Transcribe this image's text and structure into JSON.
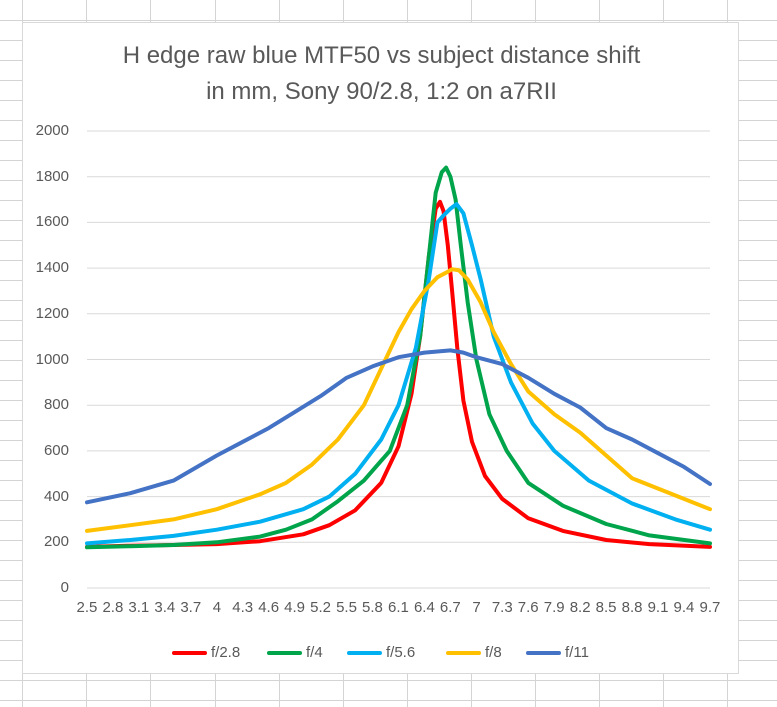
{
  "chart_data": {
    "type": "line",
    "title_line_1": "H edge raw blue MTF50 vs subject distance shift",
    "title_line_2": "in mm, Sony 90/2.8, 1:2 on a7RII",
    "x_range": [
      2.5,
      9.7
    ],
    "x_tick_labels": [
      "2.5",
      "2.8",
      "3.1",
      "3.4",
      "3.7",
      "4",
      "4.3",
      "4.6",
      "4.9",
      "5.2",
      "5.5",
      "5.8",
      "6.1",
      "6.4",
      "6.7",
      "7",
      "7.3",
      "7.6",
      "7.9",
      "8.2",
      "8.5",
      "8.8",
      "9.1",
      "9.4",
      "9.7"
    ],
    "y_tick_labels": [
      "0",
      "200",
      "400",
      "600",
      "800",
      "1000",
      "1200",
      "1400",
      "1600",
      "1800",
      "2000"
    ],
    "ylim": [
      0,
      2000
    ],
    "grid": "horizontal",
    "legend_position": "bottom",
    "series": [
      {
        "name": "f/2.8",
        "color": "#ff0000",
        "points": [
          [
            2.5,
            180
          ],
          [
            3,
            185
          ],
          [
            3.5,
            188
          ],
          [
            4,
            192
          ],
          [
            4.5,
            205
          ],
          [
            5,
            235
          ],
          [
            5.3,
            275
          ],
          [
            5.6,
            340
          ],
          [
            5.9,
            460
          ],
          [
            6.1,
            620
          ],
          [
            6.25,
            850
          ],
          [
            6.35,
            1100
          ],
          [
            6.45,
            1450
          ],
          [
            6.53,
            1660
          ],
          [
            6.58,
            1690
          ],
          [
            6.62,
            1650
          ],
          [
            6.67,
            1500
          ],
          [
            6.72,
            1300
          ],
          [
            6.78,
            1050
          ],
          [
            6.85,
            820
          ],
          [
            6.95,
            640
          ],
          [
            7.1,
            490
          ],
          [
            7.3,
            390
          ],
          [
            7.6,
            305
          ],
          [
            8,
            250
          ],
          [
            8.5,
            210
          ],
          [
            9,
            192
          ],
          [
            9.7,
            180
          ]
        ]
      },
      {
        "name": "f/4",
        "color": "#00a44a",
        "points": [
          [
            2.5,
            178
          ],
          [
            3,
            183
          ],
          [
            3.5,
            188
          ],
          [
            4,
            200
          ],
          [
            4.5,
            225
          ],
          [
            4.8,
            255
          ],
          [
            5.1,
            300
          ],
          [
            5.4,
            380
          ],
          [
            5.7,
            470
          ],
          [
            6,
            600
          ],
          [
            6.2,
            800
          ],
          [
            6.35,
            1100
          ],
          [
            6.45,
            1450
          ],
          [
            6.53,
            1730
          ],
          [
            6.6,
            1820
          ],
          [
            6.65,
            1840
          ],
          [
            6.7,
            1800
          ],
          [
            6.76,
            1700
          ],
          [
            6.82,
            1500
          ],
          [
            6.9,
            1250
          ],
          [
            7,
            1000
          ],
          [
            7.15,
            760
          ],
          [
            7.35,
            600
          ],
          [
            7.6,
            460
          ],
          [
            8,
            360
          ],
          [
            8.5,
            280
          ],
          [
            9,
            230
          ],
          [
            9.7,
            195
          ]
        ]
      },
      {
        "name": "f/5.6",
        "color": "#00b0f0",
        "points": [
          [
            2.5,
            195
          ],
          [
            3,
            210
          ],
          [
            3.5,
            228
          ],
          [
            4,
            255
          ],
          [
            4.5,
            290
          ],
          [
            5,
            345
          ],
          [
            5.3,
            400
          ],
          [
            5.6,
            500
          ],
          [
            5.9,
            650
          ],
          [
            6.1,
            800
          ],
          [
            6.3,
            1050
          ],
          [
            6.45,
            1350
          ],
          [
            6.55,
            1600
          ],
          [
            6.62,
            1630
          ],
          [
            6.7,
            1660
          ],
          [
            6.77,
            1680
          ],
          [
            6.85,
            1640
          ],
          [
            6.95,
            1500
          ],
          [
            7.05,
            1350
          ],
          [
            7.2,
            1100
          ],
          [
            7.4,
            900
          ],
          [
            7.65,
            720
          ],
          [
            7.9,
            600
          ],
          [
            8.3,
            470
          ],
          [
            8.8,
            370
          ],
          [
            9.3,
            300
          ],
          [
            9.7,
            255
          ]
        ]
      },
      {
        "name": "f/8",
        "color": "#ffc000",
        "points": [
          [
            2.5,
            250
          ],
          [
            3,
            275
          ],
          [
            3.5,
            300
          ],
          [
            4,
            345
          ],
          [
            4.5,
            410
          ],
          [
            4.8,
            460
          ],
          [
            5.1,
            540
          ],
          [
            5.4,
            650
          ],
          [
            5.7,
            800
          ],
          [
            5.95,
            1000
          ],
          [
            6.1,
            1120
          ],
          [
            6.25,
            1220
          ],
          [
            6.4,
            1300
          ],
          [
            6.55,
            1360
          ],
          [
            6.65,
            1380
          ],
          [
            6.72,
            1395
          ],
          [
            6.8,
            1390
          ],
          [
            6.9,
            1350
          ],
          [
            7.05,
            1250
          ],
          [
            7.2,
            1120
          ],
          [
            7.4,
            980
          ],
          [
            7.6,
            860
          ],
          [
            7.9,
            760
          ],
          [
            8.2,
            680
          ],
          [
            8.5,
            580
          ],
          [
            8.8,
            480
          ],
          [
            9.2,
            420
          ],
          [
            9.7,
            345
          ]
        ]
      },
      {
        "name": "f/11",
        "color": "#4472c4",
        "points": [
          [
            2.5,
            375
          ],
          [
            3,
            415
          ],
          [
            3.5,
            470
          ],
          [
            4,
            580
          ],
          [
            4.3,
            640
          ],
          [
            4.6,
            700
          ],
          [
            4.9,
            770
          ],
          [
            5.2,
            840
          ],
          [
            5.5,
            920
          ],
          [
            5.8,
            970
          ],
          [
            6.1,
            1010
          ],
          [
            6.4,
            1030
          ],
          [
            6.7,
            1040
          ],
          [
            6.85,
            1030
          ],
          [
            7,
            1010
          ],
          [
            7.3,
            980
          ],
          [
            7.6,
            920
          ],
          [
            7.9,
            850
          ],
          [
            8.2,
            790
          ],
          [
            8.5,
            700
          ],
          [
            8.8,
            650
          ],
          [
            9.1,
            590
          ],
          [
            9.4,
            530
          ],
          [
            9.7,
            455
          ]
        ]
      }
    ]
  }
}
